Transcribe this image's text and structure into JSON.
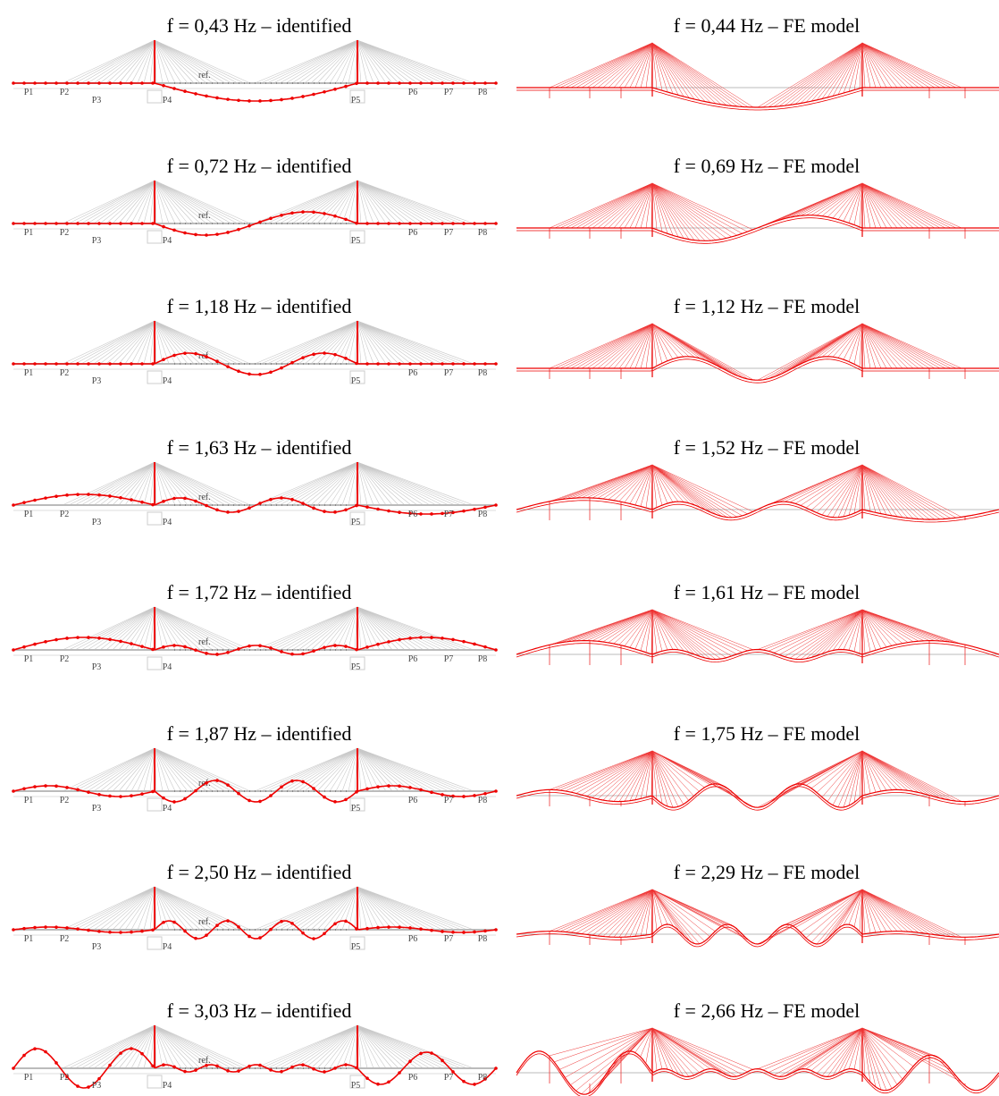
{
  "rows": [
    {
      "identified": {
        "title": "f = 0,43 Hz – identified"
      },
      "model": {
        "title": "f = 0,44 Hz – FE model"
      }
    },
    {
      "identified": {
        "title": "f = 0,72 Hz – identified"
      },
      "model": {
        "title": "f = 0,69 Hz – FE model"
      }
    },
    {
      "identified": {
        "title": "f = 1,18 Hz – identified"
      },
      "model": {
        "title": "f = 1,12 Hz – FE model"
      }
    },
    {
      "identified": {
        "title": "f = 1,63 Hz – identified"
      },
      "model": {
        "title": "f = 1,52 Hz – FE model"
      }
    },
    {
      "identified": {
        "title": "f = 1,72 Hz – identified"
      },
      "model": {
        "title": "f = 1,61 Hz – FE model"
      }
    },
    {
      "identified": {
        "title": "f = 1,87 Hz – identified"
      },
      "model": {
        "title": "f = 1,75 Hz – FE model"
      }
    },
    {
      "identified": {
        "title": "f = 2,50 Hz – identified"
      },
      "model": {
        "title": "f = 2,29 Hz – FE model"
      }
    },
    {
      "identified": {
        "title": "f = 3,03 Hz – identified"
      },
      "model": {
        "title": "f = 2,66 Hz – FE model"
      }
    }
  ],
  "piers": [
    "P1",
    "P2",
    "P3",
    "P4",
    "P5",
    "P6",
    "P7",
    "P8"
  ],
  "ref_label": "ref."
}
